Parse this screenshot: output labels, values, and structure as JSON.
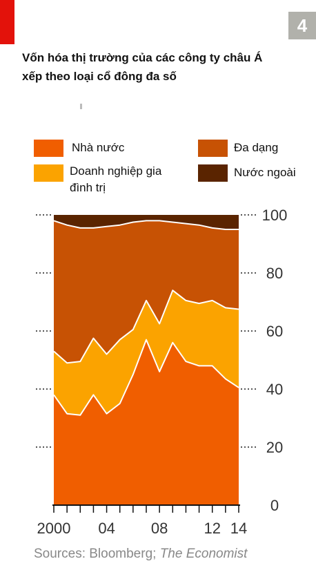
{
  "badge": "4",
  "title": "Vốn hóa thị trường của các công ty châu Á xếp theo loại cổ đông đa số",
  "source": {
    "prefix": "Sources: Bloomberg; ",
    "italic": "The Economist"
  },
  "colors": {
    "nha_nuoc": "#f05e00",
    "doanh_nghiep_gia_dinh": "#fba300",
    "da_dang": "#c75204",
    "nuoc_ngoai": "#5a2400",
    "accent_red": "#e3120b",
    "badge_gray": "#b1b1ab"
  },
  "legend": [
    {
      "label": "Nhà nước",
      "color": "#f05e00"
    },
    {
      "label": "Đa dạng",
      "color": "#c75204"
    },
    {
      "label": "Doanh nghiệp gia đình trị",
      "color": "#fba300"
    },
    {
      "label": "Nước ngoài",
      "color": "#5a2400"
    }
  ],
  "chart_data": {
    "type": "area",
    "stacked": true,
    "title": "Vốn hóa thị trường của các công ty châu Á xếp theo loại cổ đông đa số",
    "x": [
      2000,
      2001,
      2002,
      2003,
      2004,
      2005,
      2006,
      2007,
      2008,
      2009,
      2010,
      2011,
      2012,
      2013,
      2014
    ],
    "x_ticks": [
      2000,
      2004,
      2008,
      2012,
      2014
    ],
    "x_tick_labels": [
      "2000",
      "04",
      "08",
      "12",
      "14"
    ],
    "ylim": [
      0,
      100
    ],
    "y_ticks": [
      0,
      20,
      40,
      60,
      80,
      100
    ],
    "y_axis_side": "right",
    "series": [
      {
        "name": "Nhà nước",
        "color": "#f05e00",
        "cumulative": [
          38,
          31.5,
          31,
          38,
          31.5,
          35,
          45,
          57,
          46,
          56,
          49.5,
          48,
          48,
          43.5,
          40.5
        ]
      },
      {
        "name": "Doanh nghiệp gia đình trị",
        "color": "#fba300",
        "cumulative": [
          53,
          49,
          49.5,
          57.5,
          52,
          57,
          60.5,
          70.5,
          62.5,
          74,
          70.5,
          69.5,
          70.5,
          68,
          67.5
        ]
      },
      {
        "name": "Đa dạng",
        "color": "#c75204",
        "cumulative": [
          98,
          96.5,
          95.5,
          95.5,
          96,
          96.5,
          97.5,
          98,
          98,
          97.5,
          97,
          96.5,
          95.5,
          95,
          95
        ]
      },
      {
        "name": "Nước ngoài",
        "color": "#5a2400",
        "cumulative": [
          100,
          100,
          100,
          100,
          100,
          100,
          100,
          100,
          100,
          100,
          100,
          100,
          100,
          100,
          100
        ]
      }
    ]
  }
}
